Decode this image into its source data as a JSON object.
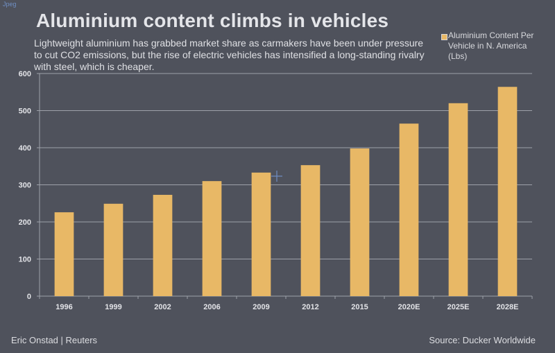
{
  "corner_tag": "Jpeg",
  "footer": {
    "credit": "Eric Onstad | Reuters",
    "source": "Source: Ducker Worldwide"
  },
  "colors": {
    "background": "#4f525c",
    "bar": "#e8b866",
    "grid": "#9ea1aa",
    "text": "#e4e5e9"
  },
  "chart_data": {
    "type": "bar",
    "title": "Aluminium content climbs in vehicles",
    "subtitle": "Lightweight aluminium has grabbed market share as carmakers have been under pressure to cut CO2 emissions, but the rise of electric vehicles has intensified a long-standing rivalry with steel, which is cheaper.",
    "xlabel": "",
    "ylabel": "",
    "ylim": [
      0,
      600
    ],
    "yticks": [
      0,
      100,
      200,
      300,
      400,
      500,
      600
    ],
    "grid": true,
    "legend_position": "top-right",
    "categories": [
      "1996",
      "1999",
      "2002",
      "2006",
      "2009",
      "2012",
      "2015",
      "2020E",
      "2025E",
      "2028E"
    ],
    "series": [
      {
        "name": "Aluminium Content Per Vehicle in N. America (Lbs)",
        "values": [
          226,
          249,
          273,
          310,
          333,
          353,
          398,
          465,
          520,
          564
        ]
      }
    ]
  }
}
